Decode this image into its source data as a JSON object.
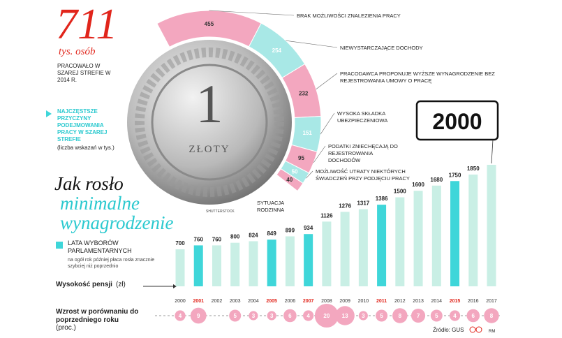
{
  "header": {
    "big_number": "711",
    "unit": "tys. osób",
    "description": "PRACOWAŁO W SZAREJ STREFIE W 2014 R.",
    "reasons_title": "NAJCZĘSTSZE PRZYCZYNY PODEJMOWANIA PRACY W SZAREJ STREFIE",
    "reasons_note": "(liczba wskazań w tys.)",
    "wage_title_1": "Jak rosło",
    "wage_title_2": "minimalne",
    "wage_title_3": "wynagrodzenie",
    "photo_credit": "SHUTTERSTOCK",
    "coin_digit": "1",
    "coin_word": "ZŁOTY"
  },
  "chart_data": [
    {
      "type": "radial_bar",
      "color": "#f3a7bf",
      "alt_color": "#a8e8e6",
      "categories": [
        "BRAK MOŻLIWOŚCI ZNALEZIENIA PRACY",
        "NIEWYSTARCZAJĄCE DOCHODY",
        "PRACODAWCA PROPONUJE WYŻSZE WYNAGRODZENIE BEZ REJESTROWANIA UMOWY O PRACĘ",
        "WYSOKA SKŁADKA UBEZPIECZENIOWA",
        "PODATKI ZNIECHĘCAJĄ DO REJESTROWANIA DOCHODÓW",
        "MOŻLIWOŚĆ UTRATY NIEKTÓRYCH ŚWIADCZEŃ PRZY PODJĘCIU PRACY",
        "SYTUACJA RODZINNA"
      ],
      "values": [
        455,
        254,
        232,
        151,
        95,
        50,
        40
      ]
    },
    {
      "type": "bar",
      "color": "#c9efe5",
      "highlight_color": "#3fd6d9",
      "highlight_label_color": "#e1251b",
      "legend": "LATA WYBORÓW PARLAMENTARNYCH",
      "legend_note": "na ogół rok później płaca rosła znacznie szybciej niż poprzednio",
      "ylabel": "Wysokość pensji",
      "yunit": "(zł)",
      "categories": [
        "2000",
        "2001",
        "2002",
        "2003",
        "2004",
        "2005",
        "2006",
        "2007",
        "2008",
        "2009",
        "2010",
        "2011",
        "2012",
        "2013",
        "2014",
        "2015",
        "2016",
        "2017"
      ],
      "values": [
        700,
        760,
        760,
        800,
        824,
        849,
        899,
        934,
        1126,
        1276,
        1317,
        1386,
        1500,
        1600,
        1680,
        1750,
        1850,
        2000
      ],
      "election": [
        false,
        true,
        false,
        false,
        false,
        true,
        false,
        true,
        false,
        false,
        false,
        true,
        false,
        false,
        false,
        true,
        false,
        false
      ],
      "ylim": [
        130,
        2000
      ]
    },
    {
      "type": "bubble",
      "color": "#f3a7bf",
      "label": "Wzrost w porównaniu do poprzedniego roku",
      "unit": "(proc.)",
      "values": [
        4,
        9,
        null,
        5,
        3,
        3,
        6,
        4,
        20,
        13,
        3,
        5,
        8,
        7,
        5,
        4,
        6,
        8
      ]
    }
  ],
  "footer": {
    "source": "Źródło: GUS",
    "author": "RM"
  }
}
